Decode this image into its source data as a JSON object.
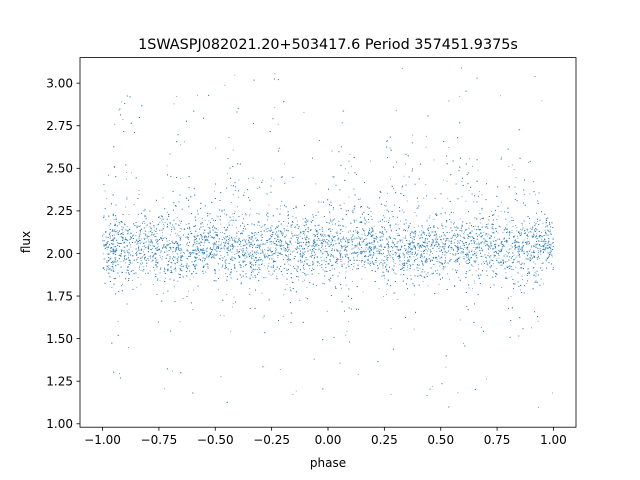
{
  "chart_data": {
    "type": "scatter",
    "title": "1SWASPJ082021.20+503417.6 Period 357451.9375s",
    "xlabel": "phase",
    "ylabel": "flux",
    "xlim": [
      -1.1,
      1.1
    ],
    "ylim": [
      0.98,
      3.15
    ],
    "x_ticks": [
      -1.0,
      -0.75,
      -0.5,
      -0.25,
      0.0,
      0.25,
      0.5,
      0.75,
      1.0
    ],
    "x_tick_labels": [
      "−1.00",
      "−0.75",
      "−0.50",
      "−0.25",
      "0.00",
      "0.25",
      "0.50",
      "0.75",
      "1.00"
    ],
    "y_ticks": [
      1.0,
      1.25,
      1.5,
      1.75,
      2.0,
      2.25,
      2.5,
      2.75,
      3.0
    ],
    "y_tick_labels": [
      "1.00",
      "1.25",
      "1.50",
      "1.75",
      "2.00",
      "2.25",
      "2.50",
      "2.75",
      "3.00"
    ],
    "grid": false,
    "point_color": "#1f77b4",
    "series": [
      {
        "x_range": [
          -1.0,
          1.0
        ],
        "baseline_flux": 2.03,
        "core_spread": 0.09,
        "outlier_range": [
          1.08,
          3.05
        ],
        "bright_bands": [
          {
            "phase": -0.92,
            "upper": 2.6,
            "lower": 1.7
          },
          {
            "phase": -0.65,
            "upper": 2.55,
            "lower": 1.65
          },
          {
            "phase": -0.43,
            "upper": 2.65,
            "lower": 1.55
          },
          {
            "phase": -0.23,
            "upper": 2.6,
            "lower": 1.6
          },
          {
            "phase": 0.08,
            "upper": 2.55,
            "lower": 1.65
          },
          {
            "phase": 0.33,
            "upper": 2.6,
            "lower": 1.6
          },
          {
            "phase": 0.58,
            "upper": 2.65,
            "lower": 1.55
          },
          {
            "phase": 0.85,
            "upper": 2.6,
            "lower": 1.65
          }
        ],
        "dim_gaps": [
          -0.8,
          -0.55,
          -0.3,
          0.0,
          0.22,
          0.45,
          0.72,
          0.97
        ]
      }
    ]
  }
}
